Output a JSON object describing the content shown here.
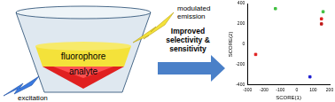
{
  "diagram": {
    "labels": {
      "fluorophore": "fluorophore",
      "analyte": "analyte",
      "excitation": "excitation",
      "emission": "modulated emission"
    },
    "arrow_text": [
      "Improved",
      "selectivity &",
      "sensitivity"
    ]
  },
  "chart_data": {
    "type": "scatter",
    "x_label": "SCORE(1)",
    "y_label": "SCORE(2)",
    "x": [
      -250,
      150,
      150,
      -130,
      160,
      80
    ],
    "values": [
      -100,
      250,
      200,
      350,
      320,
      -320
    ],
    "colors": [
      "#e02020",
      "#e02020",
      "#c01818",
      "#40c040",
      "#40c040",
      "#2020d0"
    ],
    "marker": "rect",
    "xlim": [
      -300,
      200
    ],
    "xticks": [
      -300,
      -200,
      -100,
      0,
      100,
      200
    ],
    "ylim": [
      -400,
      400
    ],
    "yticks": [
      -400,
      -200,
      0,
      200,
      400
    ],
    "grid": false
  }
}
